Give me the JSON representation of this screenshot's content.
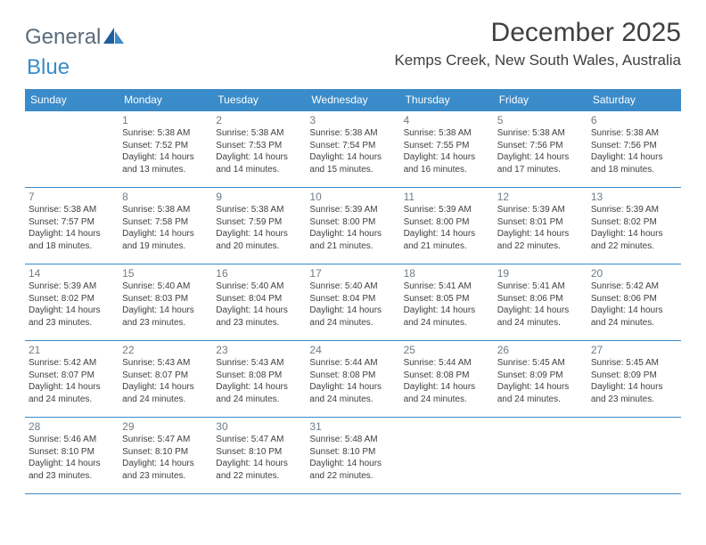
{
  "logo": {
    "word1": "General",
    "word2": "Blue"
  },
  "title": "December 2025",
  "location": "Kemps Creek, New South Wales, Australia",
  "colors": {
    "accent": "#3a8bc9",
    "text": "#404040",
    "muted": "#707b85"
  },
  "day_headers": [
    "Sunday",
    "Monday",
    "Tuesday",
    "Wednesday",
    "Thursday",
    "Friday",
    "Saturday"
  ],
  "weeks": [
    [
      null,
      {
        "n": "1",
        "sr": "Sunrise: 5:38 AM",
        "ss": "Sunset: 7:52 PM",
        "dl": "Daylight: 14 hours and 13 minutes."
      },
      {
        "n": "2",
        "sr": "Sunrise: 5:38 AM",
        "ss": "Sunset: 7:53 PM",
        "dl": "Daylight: 14 hours and 14 minutes."
      },
      {
        "n": "3",
        "sr": "Sunrise: 5:38 AM",
        "ss": "Sunset: 7:54 PM",
        "dl": "Daylight: 14 hours and 15 minutes."
      },
      {
        "n": "4",
        "sr": "Sunrise: 5:38 AM",
        "ss": "Sunset: 7:55 PM",
        "dl": "Daylight: 14 hours and 16 minutes."
      },
      {
        "n": "5",
        "sr": "Sunrise: 5:38 AM",
        "ss": "Sunset: 7:56 PM",
        "dl": "Daylight: 14 hours and 17 minutes."
      },
      {
        "n": "6",
        "sr": "Sunrise: 5:38 AM",
        "ss": "Sunset: 7:56 PM",
        "dl": "Daylight: 14 hours and 18 minutes."
      }
    ],
    [
      {
        "n": "7",
        "sr": "Sunrise: 5:38 AM",
        "ss": "Sunset: 7:57 PM",
        "dl": "Daylight: 14 hours and 18 minutes."
      },
      {
        "n": "8",
        "sr": "Sunrise: 5:38 AM",
        "ss": "Sunset: 7:58 PM",
        "dl": "Daylight: 14 hours and 19 minutes."
      },
      {
        "n": "9",
        "sr": "Sunrise: 5:38 AM",
        "ss": "Sunset: 7:59 PM",
        "dl": "Daylight: 14 hours and 20 minutes."
      },
      {
        "n": "10",
        "sr": "Sunrise: 5:39 AM",
        "ss": "Sunset: 8:00 PM",
        "dl": "Daylight: 14 hours and 21 minutes."
      },
      {
        "n": "11",
        "sr": "Sunrise: 5:39 AM",
        "ss": "Sunset: 8:00 PM",
        "dl": "Daylight: 14 hours and 21 minutes."
      },
      {
        "n": "12",
        "sr": "Sunrise: 5:39 AM",
        "ss": "Sunset: 8:01 PM",
        "dl": "Daylight: 14 hours and 22 minutes."
      },
      {
        "n": "13",
        "sr": "Sunrise: 5:39 AM",
        "ss": "Sunset: 8:02 PM",
        "dl": "Daylight: 14 hours and 22 minutes."
      }
    ],
    [
      {
        "n": "14",
        "sr": "Sunrise: 5:39 AM",
        "ss": "Sunset: 8:02 PM",
        "dl": "Daylight: 14 hours and 23 minutes."
      },
      {
        "n": "15",
        "sr": "Sunrise: 5:40 AM",
        "ss": "Sunset: 8:03 PM",
        "dl": "Daylight: 14 hours and 23 minutes."
      },
      {
        "n": "16",
        "sr": "Sunrise: 5:40 AM",
        "ss": "Sunset: 8:04 PM",
        "dl": "Daylight: 14 hours and 23 minutes."
      },
      {
        "n": "17",
        "sr": "Sunrise: 5:40 AM",
        "ss": "Sunset: 8:04 PM",
        "dl": "Daylight: 14 hours and 24 minutes."
      },
      {
        "n": "18",
        "sr": "Sunrise: 5:41 AM",
        "ss": "Sunset: 8:05 PM",
        "dl": "Daylight: 14 hours and 24 minutes."
      },
      {
        "n": "19",
        "sr": "Sunrise: 5:41 AM",
        "ss": "Sunset: 8:06 PM",
        "dl": "Daylight: 14 hours and 24 minutes."
      },
      {
        "n": "20",
        "sr": "Sunrise: 5:42 AM",
        "ss": "Sunset: 8:06 PM",
        "dl": "Daylight: 14 hours and 24 minutes."
      }
    ],
    [
      {
        "n": "21",
        "sr": "Sunrise: 5:42 AM",
        "ss": "Sunset: 8:07 PM",
        "dl": "Daylight: 14 hours and 24 minutes."
      },
      {
        "n": "22",
        "sr": "Sunrise: 5:43 AM",
        "ss": "Sunset: 8:07 PM",
        "dl": "Daylight: 14 hours and 24 minutes."
      },
      {
        "n": "23",
        "sr": "Sunrise: 5:43 AM",
        "ss": "Sunset: 8:08 PM",
        "dl": "Daylight: 14 hours and 24 minutes."
      },
      {
        "n": "24",
        "sr": "Sunrise: 5:44 AM",
        "ss": "Sunset: 8:08 PM",
        "dl": "Daylight: 14 hours and 24 minutes."
      },
      {
        "n": "25",
        "sr": "Sunrise: 5:44 AM",
        "ss": "Sunset: 8:08 PM",
        "dl": "Daylight: 14 hours and 24 minutes."
      },
      {
        "n": "26",
        "sr": "Sunrise: 5:45 AM",
        "ss": "Sunset: 8:09 PM",
        "dl": "Daylight: 14 hours and 24 minutes."
      },
      {
        "n": "27",
        "sr": "Sunrise: 5:45 AM",
        "ss": "Sunset: 8:09 PM",
        "dl": "Daylight: 14 hours and 23 minutes."
      }
    ],
    [
      {
        "n": "28",
        "sr": "Sunrise: 5:46 AM",
        "ss": "Sunset: 8:10 PM",
        "dl": "Daylight: 14 hours and 23 minutes."
      },
      {
        "n": "29",
        "sr": "Sunrise: 5:47 AM",
        "ss": "Sunset: 8:10 PM",
        "dl": "Daylight: 14 hours and 23 minutes."
      },
      {
        "n": "30",
        "sr": "Sunrise: 5:47 AM",
        "ss": "Sunset: 8:10 PM",
        "dl": "Daylight: 14 hours and 22 minutes."
      },
      {
        "n": "31",
        "sr": "Sunrise: 5:48 AM",
        "ss": "Sunset: 8:10 PM",
        "dl": "Daylight: 14 hours and 22 minutes."
      },
      null,
      null,
      null
    ]
  ]
}
